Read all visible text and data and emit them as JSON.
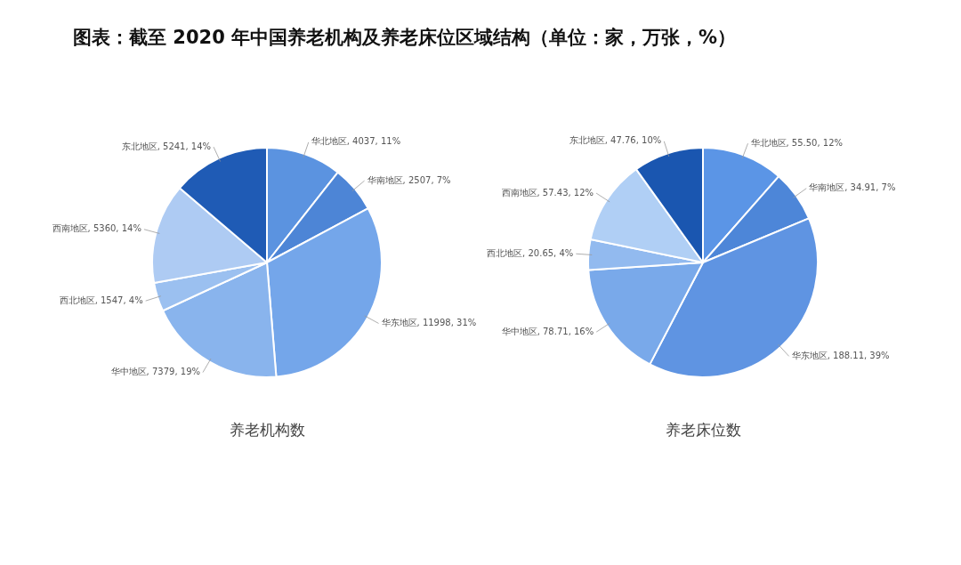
{
  "chart_data": [
    {
      "type": "pie",
      "title": "图表：截至 2020 年中国养老机构及养老床位区域结构（单位：家，万张，%）",
      "xlabel": "养老机构数",
      "legend": false,
      "categories": [
        "华北地区",
        "华南地区",
        "华东地区",
        "华中地区",
        "西北地区",
        "西南地区",
        "东北地区"
      ],
      "values": [
        4037,
        2507,
        11998,
        7379,
        1547,
        5360,
        5241
      ],
      "colors": [
        "#5b93e0",
        "#4d85d6",
        "#74a6ea",
        "#89b4ed",
        "#9bc0f0",
        "#aecbf3",
        "#1f5bb5"
      ],
      "value_labels": [
        "4037, 11%",
        "2507, 7%",
        "11998, 31%",
        "7379, 19%",
        "1547, 4%",
        "5360, 14%",
        "5241, 14%"
      ]
    },
    {
      "type": "pie",
      "xlabel": "养老床位数",
      "legend": false,
      "categories": [
        "华北地区",
        "华南地区",
        "华东地区",
        "华中地区",
        "西北地区",
        "西南地区",
        "东北地区"
      ],
      "values": [
        55.5,
        34.91,
        188.11,
        78.71,
        20.65,
        57.43,
        47.76
      ],
      "colors": [
        "#5b95e6",
        "#4d86d8",
        "#5f94e2",
        "#79a9ea",
        "#92baef",
        "#b0cff5",
        "#1a56b0"
      ],
      "value_labels": [
        "55.50, 12%",
        "34.91, 7%",
        "188.11, 39%",
        "78.71, 16%",
        "20.65, 4%",
        "57.43, 12%",
        "47.76, 10%"
      ]
    }
  ]
}
